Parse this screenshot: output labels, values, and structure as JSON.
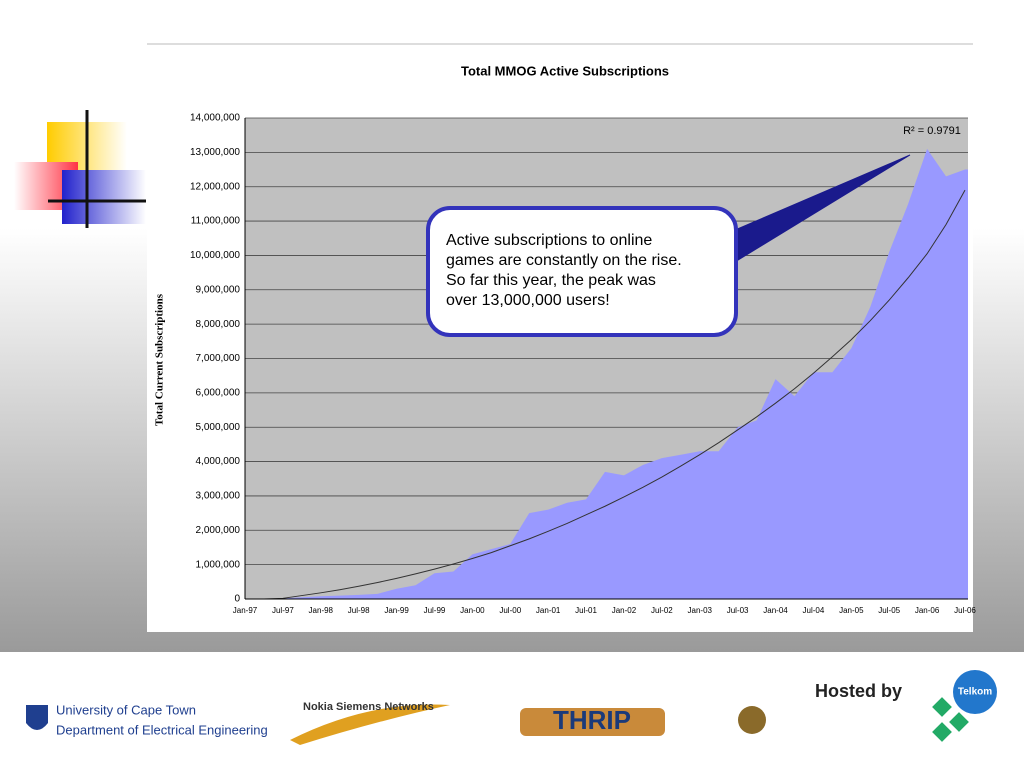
{
  "chart_data": {
    "type": "area",
    "title": "Total MMOG Active Subscriptions",
    "ylabel": "Total Current Subscriptions",
    "categories": [
      "Jan-97",
      null,
      "Jul-97",
      null,
      "Jan-98",
      null,
      "Jul-98",
      null,
      "Jan-99",
      null,
      "Jul-99",
      null,
      "Jan-00",
      null,
      "Jul-00",
      null,
      "Jan-01",
      null,
      "Jul-01",
      null,
      "Jan-02",
      null,
      "Jul-02",
      null,
      "Jan-03",
      null,
      "Jul-03",
      null,
      "Jan-04",
      null,
      "Jul-04",
      null,
      "Jan-05",
      null,
      "Jul-05",
      null,
      "Jan-06",
      null,
      "Jul-06"
    ],
    "values": [
      0,
      0,
      20000,
      50000,
      80000,
      100000,
      120000,
      150000,
      300000,
      400000,
      750000,
      800000,
      1300000,
      1450000,
      1600000,
      2500000,
      2600000,
      2800000,
      2900000,
      3700000,
      3600000,
      3900000,
      4100000,
      4200000,
      4300000,
      4300000,
      5000000,
      5200000,
      6400000,
      5900000,
      6600000,
      6600000,
      7300000,
      8500000,
      10100000,
      11500000,
      13100000,
      12300000,
      12500000
    ],
    "trend_values": [
      0,
      0,
      20000,
      100000,
      180000,
      270000,
      370000,
      480000,
      600000,
      730000,
      870000,
      1020000,
      1180000,
      1350000,
      1550000,
      1750000,
      1970000,
      2200000,
      2450000,
      2700000,
      2970000,
      3250000,
      3550000,
      3870000,
      4200000,
      4550000,
      4920000,
      5300000,
      5700000,
      6120000,
      6570000,
      7050000,
      7550000,
      8100000,
      8700000,
      9350000,
      10050000,
      10900000,
      11900000
    ],
    "color": "#9999ff",
    "trend_color": "#333333",
    "r2_label": "R² = 0.9791",
    "annotation": [
      "Active subscriptions to online",
      "games are constantly on the rise.",
      "So far this year, the peak was",
      "over 13,000,000 users!"
    ],
    "ylim": [
      0,
      14000000
    ],
    "yticks": [
      0,
      {
        "value": 1000000,
        "label": "1,000,000"
      },
      {
        "value": 2000000,
        "label": "2,000,000"
      },
      {
        "value": 3000000,
        "label": "3,000,000"
      },
      {
        "value": 4000000,
        "label": "4,000,000"
      },
      {
        "value": 5000000,
        "label": "5,000,000"
      },
      {
        "value": 6000000,
        "label": "6,000,000"
      },
      {
        "value": 7000000,
        "label": "7,000,000"
      },
      {
        "value": 8000000,
        "label": "8,000,000"
      },
      {
        "value": 9000000,
        "label": "9,000,000"
      },
      {
        "value": 10000000,
        "label": "10,000,000"
      },
      {
        "value": 11000000,
        "label": "11,000,000"
      },
      {
        "value": 12000000,
        "label": "12,000,000"
      },
      {
        "value": 13000000,
        "label": "13,000,000"
      },
      {
        "value": 14000000,
        "label": "14,000,000"
      }
    ],
    "grid": true
  },
  "footer": {
    "uct": [
      "University of Cape Town",
      "Department of Electrical Engineering"
    ],
    "nsn": "Nokia Siemens Networks",
    "thrip": "THRIP",
    "hosted": "Hosted by",
    "telkom": "Telkom"
  }
}
